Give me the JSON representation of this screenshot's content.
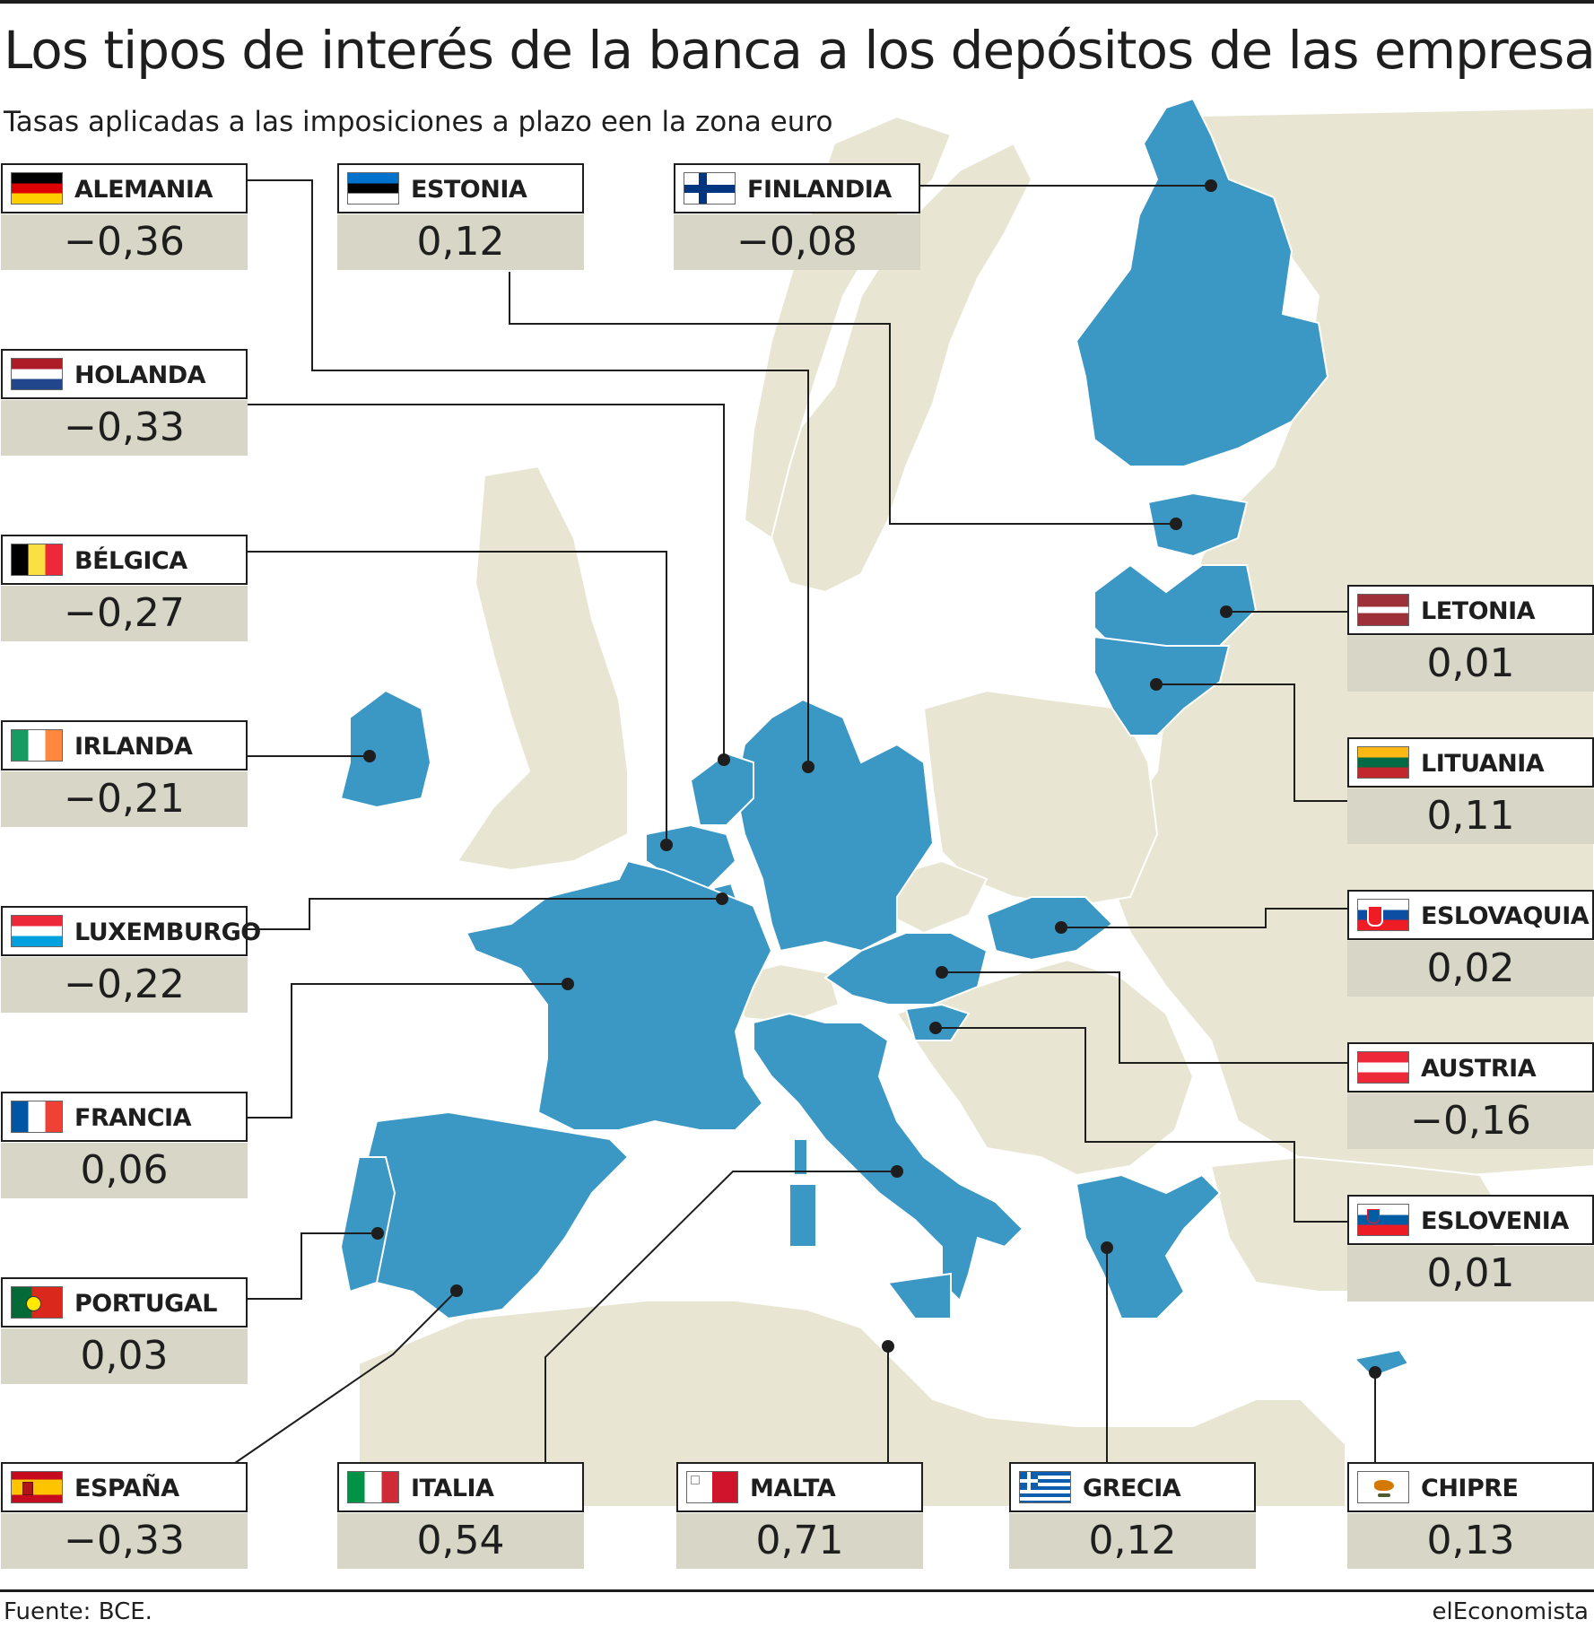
{
  "title": "Los tipos de interés de la banca a los depósitos de las empresas",
  "subtitle": "Tasas aplicadas a las imposiciones a plazo een la zona euro",
  "source": "Fuente: BCE.",
  "brand": "elEconomista",
  "colors": {
    "eurozone": "#3b97c4",
    "land": "#e8e6d3",
    "sea": "#ffffff",
    "value_box": "#d8d6c6",
    "leader": "#1e1e1e"
  },
  "countries": [
    {
      "id": "alemania",
      "name": "ALEMANIA",
      "value": "−0,36",
      "flag": "de"
    },
    {
      "id": "estonia",
      "name": "ESTONIA",
      "value": "0,12",
      "flag": "ee"
    },
    {
      "id": "finlandia",
      "name": "FINLANDIA",
      "value": "−0,08",
      "flag": "fi"
    },
    {
      "id": "holanda",
      "name": "HOLANDA",
      "value": "−0,33",
      "flag": "nl"
    },
    {
      "id": "belgica",
      "name": "BÉLGICA",
      "value": "−0,27",
      "flag": "be"
    },
    {
      "id": "irlanda",
      "name": "IRLANDA",
      "value": "−0,21",
      "flag": "ie"
    },
    {
      "id": "luxemburgo",
      "name": "LUXEMBURGO",
      "value": "−0,22",
      "flag": "lu"
    },
    {
      "id": "francia",
      "name": "FRANCIA",
      "value": "0,06",
      "flag": "fr"
    },
    {
      "id": "portugal",
      "name": "PORTUGAL",
      "value": "0,03",
      "flag": "pt"
    },
    {
      "id": "espana",
      "name": "ESPAÑA",
      "value": "−0,33",
      "flag": "es"
    },
    {
      "id": "italia",
      "name": "ITALIA",
      "value": "0,54",
      "flag": "it"
    },
    {
      "id": "malta",
      "name": "MALTA",
      "value": "0,71",
      "flag": "mt"
    },
    {
      "id": "grecia",
      "name": "GRECIA",
      "value": "0,12",
      "flag": "gr"
    },
    {
      "id": "chipre",
      "name": "CHIPRE",
      "value": "0,13",
      "flag": "cy"
    },
    {
      "id": "letonia",
      "name": "LETONIA",
      "value": "0,01",
      "flag": "lv"
    },
    {
      "id": "lituania",
      "name": "LITUANIA",
      "value": "0,11",
      "flag": "lt"
    },
    {
      "id": "eslovaquia",
      "name": "ESLOVAQUIA",
      "value": "0,02",
      "flag": "sk"
    },
    {
      "id": "austria",
      "name": "AUSTRIA",
      "value": "−0,16",
      "flag": "at"
    },
    {
      "id": "eslovenia",
      "name": "ESLOVENIA",
      "value": "0,01",
      "flag": "si"
    }
  ]
}
